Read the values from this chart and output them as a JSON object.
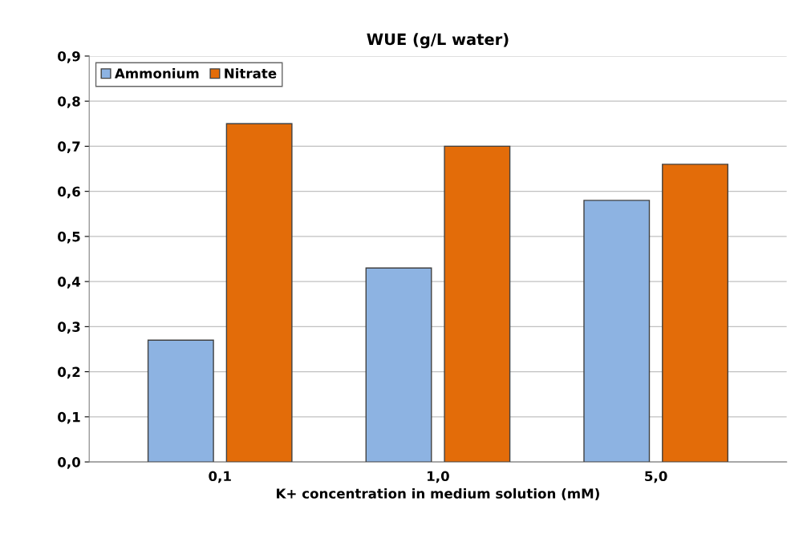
{
  "chart_data": {
    "type": "bar",
    "title": "WUE (g/L water)",
    "xlabel": "K+ concentration in medium solution (mM)",
    "categories": [
      "0,1",
      "1,0",
      "5,0"
    ],
    "series": [
      {
        "name": "Ammonium",
        "color": "#8db3e2",
        "values": [
          0.27,
          0.43,
          0.58
        ]
      },
      {
        "name": "Nitrate",
        "color": "#e36c09",
        "values": [
          0.75,
          0.7,
          0.66
        ]
      }
    ],
    "ylim": [
      0,
      0.9
    ],
    "yticks": [
      {
        "value": 0,
        "label": "0,0"
      },
      {
        "value": 0.1,
        "label": "0,1"
      },
      {
        "value": 0.2,
        "label": "0,2"
      },
      {
        "value": 0.3,
        "label": "0,3"
      },
      {
        "value": 0.4,
        "label": "0,4"
      },
      {
        "value": 0.5,
        "label": "0,5"
      },
      {
        "value": 0.6,
        "label": "0,6"
      },
      {
        "value": 0.7,
        "label": "0,7"
      },
      {
        "value": 0.8,
        "label": "0,8"
      },
      {
        "value": 0.9,
        "label": "0,9"
      }
    ],
    "grid": "y",
    "legend": "top left"
  }
}
